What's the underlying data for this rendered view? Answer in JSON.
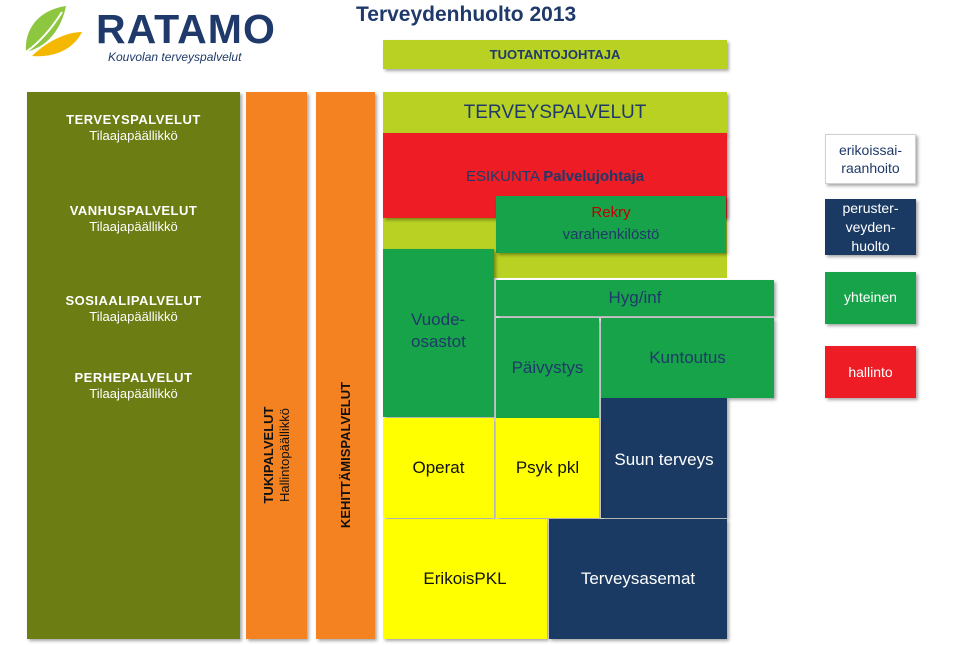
{
  "logo": {
    "name": "RATAMO",
    "subtitle": "Kouvolan terveyspalvelut"
  },
  "title": "Terveydenhuolto 2013",
  "tuotantojohtaja": "TUOTANTOJOHTAJA",
  "left_column": [
    {
      "title": "TERVEYSPALVELUT",
      "sub": "Tilaajapäällikkö"
    },
    {
      "title": "VANHUSPALVELUT",
      "sub": "Tilaajapäällikkö"
    },
    {
      "title": "SOSIAALIPALVELUT",
      "sub": "Tilaajapäällikkö"
    },
    {
      "title": "PERHEPALVELUT",
      "sub": "Tilaajapäällikkö"
    }
  ],
  "tukipalvelut": {
    "title": "TUKIPALVELUT",
    "sub": "Hallintopäällikkö"
  },
  "kehittamispalvelut": "KEHITTÄMISPALVELUT",
  "terveyspalvelut_header": "TERVEYSPALVELUT",
  "esikunta": {
    "name": "ESIKUNTA",
    "role": "Palvelujohtaja"
  },
  "rekry": {
    "title": "Rekry",
    "sub": "varahenkilöstö"
  },
  "units": {
    "vuodeosastot": [
      "Vuode-",
      "osastot"
    ],
    "hyg": "Hyg/inf",
    "paivystys": "Päivystys",
    "kuntoutus": "Kuntoutus",
    "suun_terveys": "Suun terveys",
    "operat": "Operat",
    "psyk_pkl": "Psyk pkl",
    "erikois_pkl": "ErikoisPKL",
    "terveysasemat": "Terveysasemat"
  },
  "right_boxes": {
    "erikoissairaanhoito": [
      "erikoissai-",
      "raanhoito"
    ],
    "perusterveydenhuolto": [
      "peruster-",
      "veyden-",
      "huolto"
    ],
    "yhteinen": "yhteinen",
    "hallinto": "hallinto"
  },
  "colors": {
    "olive": "#6b7d13",
    "orange": "#f58220",
    "lime": "#b8d123",
    "red": "#ee1c24",
    "green": "#17a34a",
    "navy": "#1a3a63",
    "yellow": "#ffff00"
  }
}
